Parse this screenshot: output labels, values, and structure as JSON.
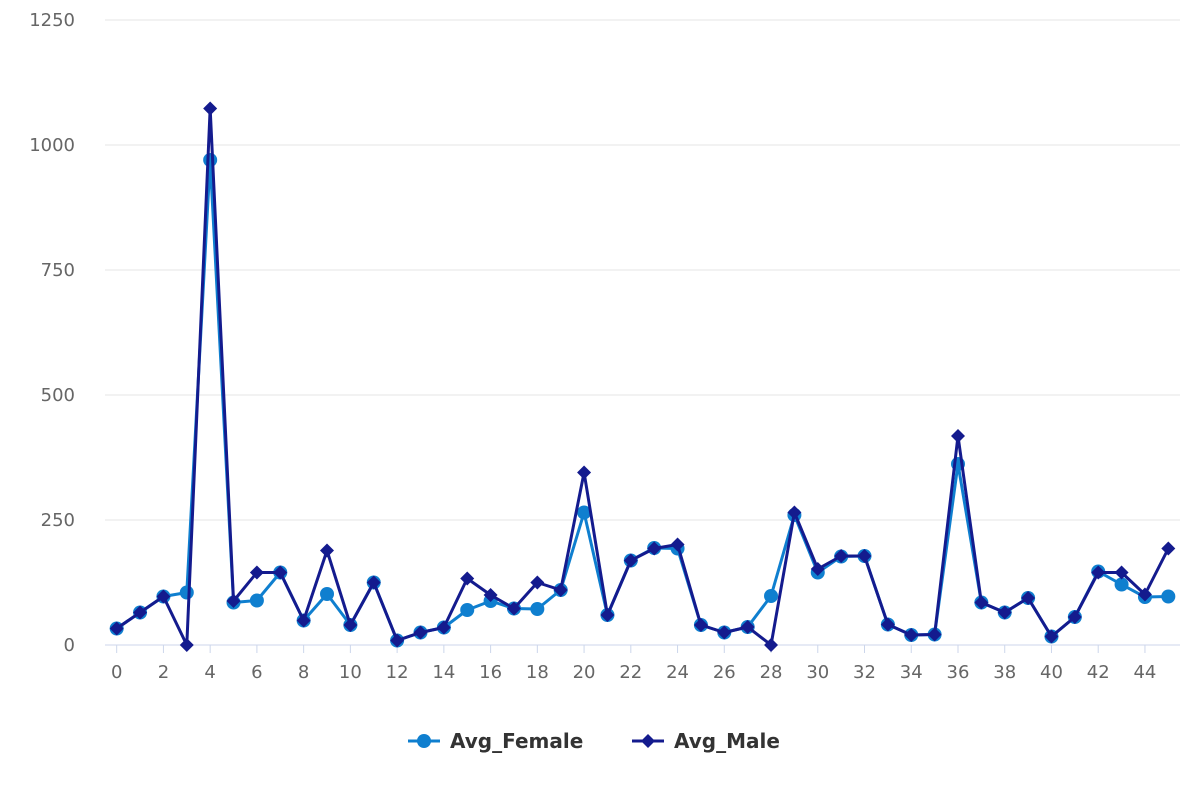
{
  "chart_data": {
    "type": "line",
    "title": "",
    "xlabel": "",
    "ylabel": "",
    "x": [
      0,
      1,
      2,
      3,
      4,
      5,
      6,
      7,
      8,
      9,
      10,
      11,
      12,
      13,
      14,
      15,
      16,
      17,
      18,
      19,
      20,
      21,
      22,
      23,
      24,
      25,
      26,
      27,
      28,
      29,
      30,
      31,
      32,
      33,
      34,
      35,
      36,
      37,
      38,
      39,
      40,
      41,
      42,
      43,
      44,
      45
    ],
    "x_tick_labels": [
      "0",
      "2",
      "4",
      "6",
      "8",
      "10",
      "12",
      "14",
      "16",
      "18",
      "20",
      "22",
      "24",
      "26",
      "28",
      "30",
      "32",
      "34",
      "36",
      "38",
      "40",
      "42",
      "44"
    ],
    "y_tick_labels": [
      "0",
      "250",
      "500",
      "750",
      "1000",
      "1250"
    ],
    "ylim": [
      0,
      1250
    ],
    "xlim": [
      -0.5,
      45.5
    ],
    "grid": "horizontal",
    "legend_position": "bottom-center",
    "series": [
      {
        "name": "Avg_Female",
        "color": "#0f7fcf",
        "marker": "circle",
        "values": [
          33,
          65,
          97,
          105,
          970,
          85,
          89,
          145,
          49,
          102,
          40,
          125,
          9,
          25,
          35,
          70,
          88,
          73,
          72,
          110,
          265,
          60,
          169,
          194,
          193,
          40,
          25,
          36,
          98,
          260,
          145,
          177,
          178,
          41,
          20,
          21,
          362,
          85,
          65,
          94,
          17,
          56,
          147,
          121,
          96,
          97
        ]
      },
      {
        "name": "Avg_Male",
        "color": "#141b8e",
        "marker": "diamond",
        "values": [
          33,
          65,
          97,
          0,
          1073,
          88,
          145,
          145,
          49,
          189,
          40,
          125,
          9,
          25,
          35,
          133,
          100,
          73,
          125,
          110,
          345,
          60,
          169,
          193,
          201,
          40,
          25,
          36,
          0,
          265,
          152,
          178,
          178,
          41,
          20,
          21,
          418,
          85,
          65,
          94,
          17,
          56,
          145,
          145,
          101,
          193
        ]
      }
    ]
  }
}
